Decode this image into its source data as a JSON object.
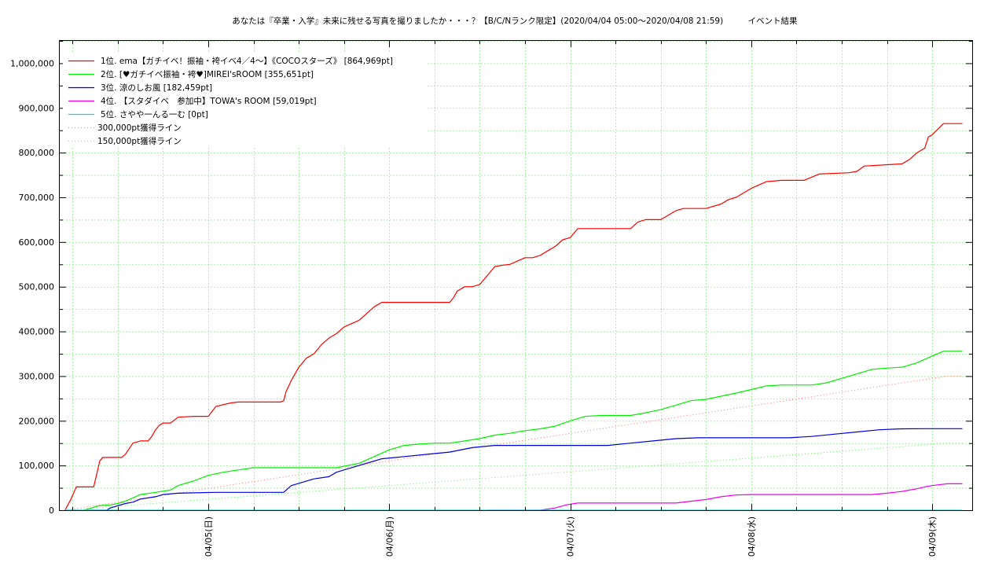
{
  "chart_data": {
    "type": "line",
    "title": "あなたは『卒業・入学』未来に残せる写真を撮りましたか・・・？【B/C/Nランク限定】(2020/04/04 05:00〜2020/04/08 21:59)　　　イベント結果",
    "xlabel": "",
    "ylabel": "",
    "x_unit": "hours since 2020/04/04 00:00",
    "xlim": [
      4.3,
      125.3
    ],
    "ylim": [
      0,
      1050000
    ],
    "y_ticks": [
      0,
      100000,
      200000,
      300000,
      400000,
      500000,
      600000,
      700000,
      800000,
      900000,
      1000000
    ],
    "y_tick_labels": [
      "0",
      "100,000",
      "200,000",
      "300,000",
      "400,000",
      "500,000",
      "600,000",
      "700,000",
      "800,000",
      "900,000",
      "1,000,000"
    ],
    "x_ticks": [
      24,
      48,
      72,
      96,
      120
    ],
    "x_tick_labels": [
      "04/05(日)",
      "04/06(月)",
      "04/07(火)",
      "04/08(水)",
      "04/09(木)"
    ],
    "grid": true,
    "legend_position": "top-left",
    "series": [
      {
        "name": "1位. ema【ガチイベ！振袖・袴イベ4／4〜】《COCOスターズ》 [864,969pt]",
        "color": "#ff0000",
        "style": "solid",
        "x": [
          5,
          5.8,
          6.5,
          8,
          8.8,
          9.2,
          9.6,
          10,
          11,
          12,
          12.5,
          13,
          14,
          15,
          15.5,
          16,
          16.5,
          17,
          17.5,
          18,
          19,
          20,
          22,
          22.5,
          23,
          23.5,
          24,
          25,
          27,
          28,
          29,
          32,
          32.8,
          33.2,
          33.6,
          34,
          34.3,
          35,
          36,
          37,
          38,
          38.5,
          39,
          40,
          41,
          42,
          44,
          45,
          46,
          47,
          48,
          50,
          52,
          54,
          56,
          56.5,
          57,
          58,
          59,
          60,
          60.5,
          61,
          62,
          63,
          64,
          66,
          67,
          68,
          69,
          70,
          71,
          72,
          73,
          76,
          78,
          80,
          81,
          82,
          84,
          86,
          87,
          88,
          90,
          92,
          93,
          94,
          96,
          98,
          100,
          103,
          105,
          109,
          110,
          111,
          113,
          116,
          117,
          118,
          119,
          119.5,
          120,
          121.5,
          124
        ],
        "values": [
          0,
          25000,
          52000,
          52000,
          52000,
          80000,
          110000,
          118000,
          118000,
          118000,
          118000,
          125000,
          150000,
          155000,
          155000,
          155000,
          165000,
          180000,
          190000,
          195000,
          195000,
          208000,
          210000,
          210000,
          210000,
          210000,
          210000,
          232000,
          240000,
          242000,
          242000,
          242000,
          242000,
          242000,
          242000,
          245000,
          265000,
          290000,
          320000,
          340000,
          350000,
          360000,
          370000,
          385000,
          395000,
          410000,
          425000,
          440000,
          455000,
          465000,
          465000,
          465000,
          465000,
          465000,
          465000,
          475000,
          490000,
          500000,
          500000,
          505000,
          515000,
          525000,
          545000,
          548000,
          550000,
          565000,
          565000,
          570000,
          580000,
          590000,
          605000,
          610000,
          630000,
          630000,
          630000,
          630000,
          645000,
          650000,
          650000,
          670000,
          675000,
          675000,
          675000,
          685000,
          695000,
          700000,
          720000,
          735000,
          738000,
          738000,
          752000,
          755000,
          758000,
          770000,
          772000,
          775000,
          785000,
          800000,
          810000,
          835000,
          840000,
          864969,
          864969
        ]
      },
      {
        "name": "2位. [♥ガチイベ振袖・袴♥]MIREI'sROOM [355,651pt]",
        "color": "#00ee00",
        "style": "solid",
        "x": [
          7.5,
          8.5,
          9.5,
          11,
          12,
          13,
          15,
          17,
          19,
          20,
          22,
          24,
          26,
          28,
          30,
          32,
          35,
          38,
          41,
          44,
          46,
          48,
          50,
          52,
          54,
          56,
          58,
          60,
          62,
          64,
          66,
          68,
          70,
          72,
          74,
          76,
          78,
          80,
          82,
          84,
          86,
          88,
          90,
          92,
          94,
          96,
          98,
          100,
          102,
          104,
          106,
          108,
          110,
          112,
          114,
          116,
          118,
          120,
          121.5,
          124
        ],
        "values": [
          0,
          5000,
          10000,
          12000,
          15000,
          20000,
          35000,
          40000,
          45000,
          55000,
          65000,
          78000,
          85000,
          90000,
          95000,
          95000,
          95000,
          95000,
          95000,
          105000,
          120000,
          135000,
          145000,
          148000,
          150000,
          150000,
          155000,
          160000,
          168000,
          172000,
          178000,
          182000,
          188000,
          200000,
          210000,
          212000,
          212000,
          212000,
          218000,
          225000,
          235000,
          245000,
          248000,
          255000,
          262000,
          270000,
          278000,
          280000,
          280000,
          280000,
          285000,
          295000,
          305000,
          315000,
          318000,
          320000,
          330000,
          345000,
          355651,
          355651
        ]
      },
      {
        "name": "3位. 涼のしお風 [182,459pt]",
        "color": "#0000dd",
        "style": "solid",
        "x": [
          8,
          10.5,
          11,
          13,
          14,
          15,
          17,
          18,
          20,
          25,
          30,
          34,
          35,
          38,
          40,
          41,
          44,
          46,
          47,
          50,
          53,
          56,
          59,
          62,
          65,
          68,
          71,
          74,
          77,
          80,
          83,
          86,
          89,
          92,
          95,
          98,
          101,
          104,
          107,
          110,
          113,
          116,
          119,
          122,
          124
        ],
        "values": [
          0,
          0,
          5000,
          15000,
          18000,
          25000,
          30000,
          35000,
          38000,
          40000,
          40000,
          40000,
          55000,
          70000,
          75000,
          85000,
          100000,
          110000,
          115000,
          120000,
          125000,
          130000,
          140000,
          145000,
          145000,
          145000,
          145000,
          145000,
          145000,
          150000,
          155000,
          160000,
          162000,
          162000,
          162000,
          162000,
          162000,
          165000,
          170000,
          175000,
          180000,
          182000,
          182459,
          182459,
          182459
        ]
      },
      {
        "name": "4位. 【スタダイベ　参加中】TOWA's ROOM [59,019pt]",
        "color": "#ee00ee",
        "style": "solid",
        "x": [
          61,
          64,
          66,
          68,
          70,
          71.5,
          73,
          76,
          80,
          84,
          86,
          88,
          90,
          92,
          94,
          96,
          100,
          104,
          108,
          110,
          112,
          114,
          116,
          117,
          118,
          119,
          120,
          122,
          124
        ],
        "values": [
          0,
          0,
          0,
          0,
          5000,
          12000,
          16000,
          16000,
          16000,
          16000,
          16000,
          20000,
          24000,
          30000,
          34000,
          35000,
          35000,
          35000,
          35000,
          35000,
          35000,
          38000,
          42000,
          45000,
          48000,
          52000,
          55000,
          59019,
          59019
        ]
      },
      {
        "name": "5位. さやや一んる一む [0pt]",
        "color": "#00dddd",
        "style": "solid",
        "x": [
          5,
          124
        ],
        "values": [
          0,
          0
        ]
      },
      {
        "name": "300,000pt獲得ライン",
        "color": "#ff7777",
        "style": "dotted",
        "x": [
          5,
          122,
          124
        ],
        "values": [
          0,
          300000,
          300000
        ]
      },
      {
        "name": "150,000pt獲得ライン",
        "color": "#66ee66",
        "style": "dotted",
        "x": [
          5,
          122,
          124
        ],
        "values": [
          0,
          150000,
          150000
        ]
      }
    ]
  }
}
